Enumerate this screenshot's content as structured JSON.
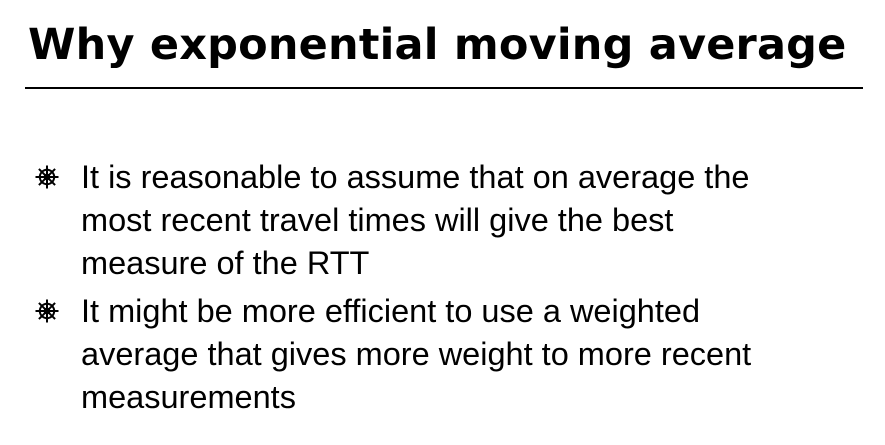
{
  "slide": {
    "title": "Why exponential moving average",
    "bullet_icon": "ship-wheel-icon",
    "bullets": [
      {
        "line1": "It is reasonable to assume that on average the",
        "line2": "most recent travel times will give the best",
        "line3": "measure of the RTT"
      },
      {
        "line1": "It might be more efficient to use a weighted",
        "line2": "average that gives more weight to more recent",
        "line3": "measurements"
      }
    ]
  }
}
